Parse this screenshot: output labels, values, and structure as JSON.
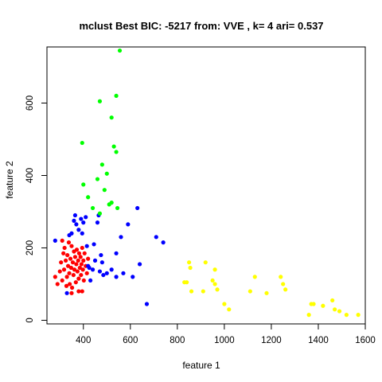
{
  "chart_data": {
    "type": "scatter",
    "title": "mclust Best BIC: -5217 from: VVE , k= 4 ari= 0.537",
    "xlabel": "feature 1",
    "ylabel": "feature 2",
    "xlim": [
      245,
      1600
    ],
    "ylim": [
      -10,
      755
    ],
    "x_ticks": [
      400,
      600,
      800,
      1000,
      1200,
      1400,
      1600
    ],
    "y_ticks": [
      0,
      200,
      400,
      600
    ],
    "grid": false,
    "legend": "none",
    "series": [
      {
        "color": "#ff0000",
        "points": [
          [
            280,
            120
          ],
          [
            290,
            100
          ],
          [
            300,
            135
          ],
          [
            305,
            160
          ],
          [
            310,
            220
          ],
          [
            310,
            110
          ],
          [
            315,
            185
          ],
          [
            318,
            140
          ],
          [
            320,
            200
          ],
          [
            325,
            165
          ],
          [
            328,
            95
          ],
          [
            330,
            120
          ],
          [
            332,
            180
          ],
          [
            335,
            150
          ],
          [
            338,
            215
          ],
          [
            340,
            130
          ],
          [
            342,
            100
          ],
          [
            345,
            170
          ],
          [
            348,
            145
          ],
          [
            350,
            205
          ],
          [
            352,
            90
          ],
          [
            355,
            160
          ],
          [
            358,
            125
          ],
          [
            360,
            190
          ],
          [
            362,
            140
          ],
          [
            365,
            175
          ],
          [
            368,
            105
          ],
          [
            370,
            155
          ],
          [
            372,
            195
          ],
          [
            375,
            135
          ],
          [
            378,
            165
          ],
          [
            380,
            115
          ],
          [
            382,
            185
          ],
          [
            385,
            145
          ],
          [
            388,
            175
          ],
          [
            390,
            125
          ],
          [
            392,
            155
          ],
          [
            395,
            200
          ],
          [
            398,
            140
          ],
          [
            400,
            165
          ],
          [
            402,
            110
          ],
          [
            405,
            185
          ],
          [
            410,
            150
          ],
          [
            415,
            130
          ],
          [
            420,
            170
          ],
          [
            380,
            80
          ],
          [
            395,
            80
          ],
          [
            350,
            75
          ]
        ]
      },
      {
        "color": "#0000ff",
        "points": [
          [
            280,
            220
          ],
          [
            330,
            75
          ],
          [
            340,
            235
          ],
          [
            350,
            240
          ],
          [
            360,
            275
          ],
          [
            365,
            290
          ],
          [
            370,
            265
          ],
          [
            380,
            250
          ],
          [
            390,
            280
          ],
          [
            395,
            240
          ],
          [
            400,
            270
          ],
          [
            410,
            285
          ],
          [
            415,
            205
          ],
          [
            420,
            150
          ],
          [
            425,
            145
          ],
          [
            430,
            110
          ],
          [
            440,
            140
          ],
          [
            445,
            210
          ],
          [
            450,
            165
          ],
          [
            460,
            270
          ],
          [
            465,
            290
          ],
          [
            470,
            135
          ],
          [
            475,
            180
          ],
          [
            480,
            160
          ],
          [
            485,
            125
          ],
          [
            500,
            130
          ],
          [
            520,
            140
          ],
          [
            540,
            120
          ],
          [
            540,
            185
          ],
          [
            560,
            230
          ],
          [
            570,
            130
          ],
          [
            590,
            265
          ],
          [
            610,
            120
          ],
          [
            630,
            310
          ],
          [
            640,
            155
          ],
          [
            670,
            45
          ],
          [
            710,
            230
          ],
          [
            740,
            215
          ]
        ]
      },
      {
        "color": "#00ff00",
        "points": [
          [
            395,
            490
          ],
          [
            400,
            375
          ],
          [
            420,
            340
          ],
          [
            440,
            310
          ],
          [
            460,
            390
          ],
          [
            470,
            295
          ],
          [
            470,
            605
          ],
          [
            480,
            430
          ],
          [
            490,
            360
          ],
          [
            500,
            405
          ],
          [
            510,
            320
          ],
          [
            520,
            325
          ],
          [
            520,
            560
          ],
          [
            530,
            480
          ],
          [
            540,
            465
          ],
          [
            540,
            620
          ],
          [
            545,
            310
          ],
          [
            555,
            745
          ]
        ]
      },
      {
        "color": "#ffff00",
        "points": [
          [
            830,
            105
          ],
          [
            840,
            105
          ],
          [
            850,
            160
          ],
          [
            855,
            145
          ],
          [
            860,
            80
          ],
          [
            910,
            80
          ],
          [
            920,
            160
          ],
          [
            950,
            110
          ],
          [
            960,
            140
          ],
          [
            960,
            100
          ],
          [
            970,
            85
          ],
          [
            1000,
            45
          ],
          [
            1020,
            30
          ],
          [
            1110,
            80
          ],
          [
            1130,
            120
          ],
          [
            1180,
            75
          ],
          [
            1240,
            120
          ],
          [
            1250,
            100
          ],
          [
            1260,
            85
          ],
          [
            1360,
            15
          ],
          [
            1370,
            45
          ],
          [
            1380,
            45
          ],
          [
            1420,
            40
          ],
          [
            1460,
            55
          ],
          [
            1470,
            30
          ],
          [
            1490,
            25
          ],
          [
            1520,
            15
          ],
          [
            1570,
            15
          ]
        ]
      }
    ]
  }
}
